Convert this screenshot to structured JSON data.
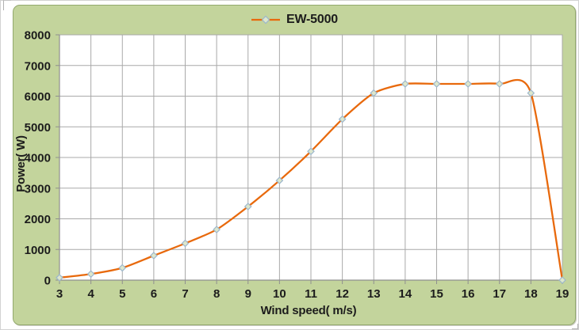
{
  "chart": {
    "colors": {
      "chart_bg": "#c3d49c",
      "chart_border": "#93a96e",
      "plot_bg": "#ffffff",
      "gridline": "#a9a9a9",
      "axis_line": "#8f8f8f",
      "series_line": "#e8690c",
      "marker_fill": "#dde7cc",
      "marker_stroke": "#9cb6cc",
      "text": "#1c1c1c"
    }
  },
  "chart_data": {
    "type": "line",
    "title": "",
    "series": [
      {
        "name": "EW-5000",
        "x": [
          3,
          4,
          5,
          6,
          7,
          8,
          9,
          10,
          11,
          12,
          13,
          14,
          15,
          16,
          17,
          18,
          19
        ],
        "values": [
          80,
          200,
          400,
          800,
          1200,
          1650,
          2400,
          3250,
          4200,
          5250,
          6100,
          6400,
          6400,
          6400,
          6400,
          6100,
          0
        ]
      }
    ],
    "xlabel": "Wind speed( m/s)",
    "ylabel": "Power( W)",
    "xlim": [
      3,
      19
    ],
    "ylim": [
      0,
      8000
    ],
    "x_ticks": [
      3,
      4,
      5,
      6,
      7,
      8,
      9,
      10,
      11,
      12,
      13,
      14,
      15,
      16,
      17,
      18,
      19
    ],
    "y_ticks": [
      0,
      1000,
      2000,
      3000,
      4000,
      5000,
      6000,
      7000,
      8000
    ],
    "grid": true,
    "legend_position": "top-center",
    "smooth": true,
    "marker": "diamond"
  }
}
